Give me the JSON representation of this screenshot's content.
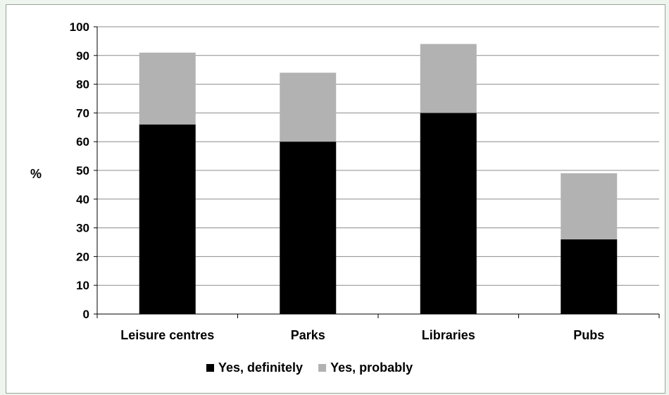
{
  "chart_data": {
    "type": "bar",
    "stacked": true,
    "categories": [
      "Leisure centres",
      "Parks",
      "Libraries",
      "Pubs"
    ],
    "series": [
      {
        "name": "Yes, definitely",
        "values": [
          66,
          60,
          70,
          26
        ],
        "color": "#000000"
      },
      {
        "name": "Yes, probably",
        "values": [
          25,
          24,
          24,
          23
        ],
        "color": "#b2b2b2"
      }
    ],
    "ylabel": "%",
    "xlabel": "",
    "ylim": [
      0,
      100
    ],
    "yticks": [
      0,
      10,
      20,
      30,
      40,
      50,
      60,
      70,
      80,
      90,
      100
    ],
    "grid": true,
    "legend": "bottom"
  },
  "colors": {
    "gridline": "#8c8c8c",
    "background": "#ffffff",
    "page": "#eef5ee"
  }
}
